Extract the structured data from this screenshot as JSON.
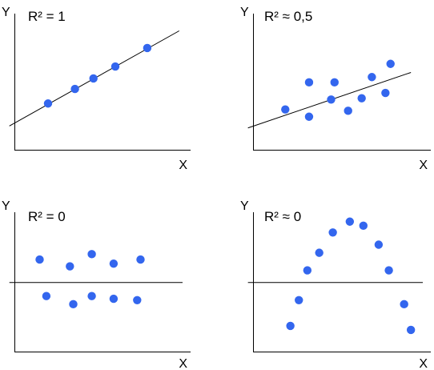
{
  "point_color": "#3366ee",
  "line_color": "#000000",
  "chart_data": [
    {
      "type": "scatter",
      "annotation": "R² = 1",
      "xlabel": "X",
      "ylabel": "Y",
      "xlim": [
        0,
        10
      ],
      "ylim": [
        0,
        10
      ],
      "grid": false,
      "fit_line": {
        "kind": "linear",
        "x0": -0.3,
        "y0": 1.8,
        "x1": 9.8,
        "y1": 9.0
      },
      "points": [
        {
          "x": 2.0,
          "y": 3.5
        },
        {
          "x": 3.6,
          "y": 4.6
        },
        {
          "x": 4.7,
          "y": 5.4
        },
        {
          "x": 6.0,
          "y": 6.3
        },
        {
          "x": 7.9,
          "y": 7.7
        }
      ]
    },
    {
      "type": "scatter",
      "annotation": "R² ≈ 0,5",
      "xlabel": "X",
      "ylabel": "Y",
      "xlim": [
        0,
        10
      ],
      "ylim": [
        0,
        10
      ],
      "grid": false,
      "fit_line": {
        "kind": "linear",
        "x0": -0.3,
        "y0": 1.65,
        "x1": 9.3,
        "y1": 5.85
      },
      "points": [
        {
          "x": 1.9,
          "y": 3.05
        },
        {
          "x": 3.3,
          "y": 2.5
        },
        {
          "x": 3.3,
          "y": 5.1
        },
        {
          "x": 4.6,
          "y": 3.8
        },
        {
          "x": 4.8,
          "y": 5.1
        },
        {
          "x": 5.6,
          "y": 2.95
        },
        {
          "x": 6.4,
          "y": 3.9
        },
        {
          "x": 7.0,
          "y": 5.5
        },
        {
          "x": 7.8,
          "y": 4.3
        },
        {
          "x": 8.1,
          "y": 6.5
        }
      ]
    },
    {
      "type": "scatter",
      "annotation": "R² = 0",
      "xlabel": "X",
      "ylabel": "Y",
      "xlim": [
        0,
        10
      ],
      "ylim": [
        0,
        10
      ],
      "grid": false,
      "fit_line": {
        "kind": "horizontal",
        "x0": -0.3,
        "y0": 5.1,
        "x1": 10.0,
        "y1": 5.1
      },
      "points": [
        {
          "x": 1.5,
          "y": 6.8
        },
        {
          "x": 1.9,
          "y": 4.1
        },
        {
          "x": 3.3,
          "y": 6.3
        },
        {
          "x": 3.5,
          "y": 3.5
        },
        {
          "x": 4.6,
          "y": 7.2
        },
        {
          "x": 4.6,
          "y": 4.1
        },
        {
          "x": 5.9,
          "y": 6.5
        },
        {
          "x": 5.9,
          "y": 3.9
        },
        {
          "x": 7.3,
          "y": 3.8
        },
        {
          "x": 7.5,
          "y": 6.8
        }
      ]
    },
    {
      "type": "scatter",
      "annotation": "R² ≈ 0",
      "xlabel": "X",
      "ylabel": "Y",
      "xlim": [
        0,
        10
      ],
      "ylim": [
        0,
        10
      ],
      "grid": false,
      "fit_line": {
        "kind": "horizontal",
        "x0": -0.3,
        "y0": 5.1,
        "x1": 10.0,
        "y1": 5.1
      },
      "points": [
        {
          "x": 2.2,
          "y": 1.9
        },
        {
          "x": 2.7,
          "y": 3.8
        },
        {
          "x": 3.2,
          "y": 6.0
        },
        {
          "x": 3.9,
          "y": 7.3
        },
        {
          "x": 4.7,
          "y": 8.8
        },
        {
          "x": 5.7,
          "y": 9.6
        },
        {
          "x": 6.5,
          "y": 9.3
        },
        {
          "x": 7.4,
          "y": 7.9
        },
        {
          "x": 8.0,
          "y": 6.0
        },
        {
          "x": 8.9,
          "y": 3.5
        },
        {
          "x": 9.3,
          "y": 1.6
        }
      ]
    }
  ]
}
